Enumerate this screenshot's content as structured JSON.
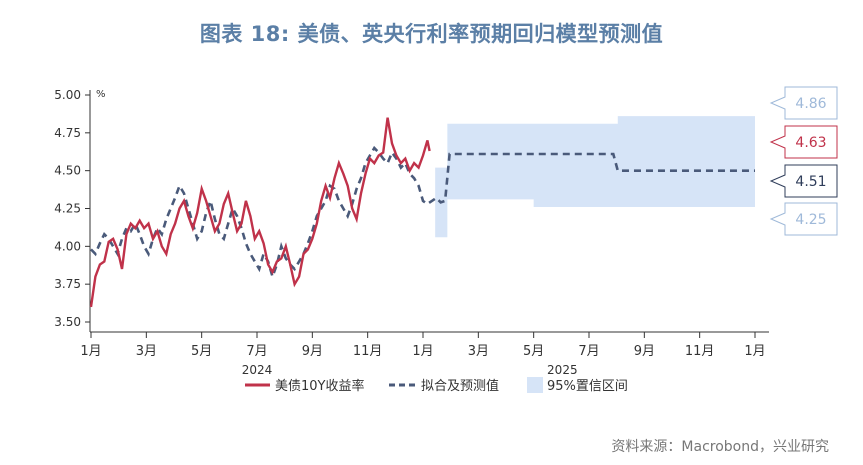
{
  "title": "图表 18: 美债、英央行利率预期回归模型预测值",
  "source": "资料来源：Macrobond，兴业研究",
  "chart_data": {
    "type": "line",
    "unit_label": "%",
    "ylim": [
      3.5,
      5.0
    ],
    "yticks": [
      "5.00",
      "4.75",
      "4.50",
      "4.25",
      "4.00",
      "3.75",
      "3.50"
    ],
    "xticks": [
      "1月",
      "3月",
      "5月",
      "7月",
      "9月",
      "11月",
      "1月",
      "3月",
      "5月",
      "7月",
      "9月",
      "11月",
      "1月"
    ],
    "year_labels": [
      "2024",
      "2025"
    ],
    "legend": {
      "actual": "美债10Y收益率",
      "fit": "拟合及预测值",
      "band": "95%置信区间"
    },
    "colors": {
      "actual": "#c0324a",
      "fit": "#4a5a7a",
      "band": "#d6e4f7"
    },
    "callouts": [
      {
        "value": "4.86",
        "color": "#9fb9d9"
      },
      {
        "value": "4.63",
        "color": "#c0324a"
      },
      {
        "value": "4.51",
        "color": "#2f3d5a"
      },
      {
        "value": "4.25",
        "color": "#9fb9d9"
      }
    ],
    "actual": [
      [
        0,
        3.6
      ],
      [
        2,
        3.8
      ],
      [
        4,
        3.88
      ],
      [
        6,
        3.9
      ],
      [
        8,
        4.03
      ],
      [
        10,
        4.05
      ],
      [
        12,
        3.98
      ],
      [
        14,
        3.85
      ],
      [
        16,
        4.08
      ],
      [
        18,
        4.15
      ],
      [
        20,
        4.12
      ],
      [
        22,
        4.17
      ],
      [
        24,
        4.12
      ],
      [
        26,
        4.15
      ],
      [
        28,
        4.05
      ],
      [
        30,
        4.1
      ],
      [
        32,
        4.0
      ],
      [
        34,
        3.95
      ],
      [
        36,
        4.08
      ],
      [
        38,
        4.15
      ],
      [
        40,
        4.25
      ],
      [
        42,
        4.3
      ],
      [
        44,
        4.2
      ],
      [
        46,
        4.12
      ],
      [
        48,
        4.22
      ],
      [
        50,
        4.38
      ],
      [
        52,
        4.3
      ],
      [
        54,
        4.2
      ],
      [
        56,
        4.1
      ],
      [
        58,
        4.15
      ],
      [
        60,
        4.28
      ],
      [
        62,
        4.35
      ],
      [
        64,
        4.22
      ],
      [
        66,
        4.1
      ],
      [
        68,
        4.15
      ],
      [
        70,
        4.3
      ],
      [
        72,
        4.2
      ],
      [
        74,
        4.05
      ],
      [
        76,
        4.1
      ],
      [
        78,
        4.02
      ],
      [
        80,
        3.88
      ],
      [
        82,
        3.83
      ],
      [
        84,
        3.9
      ],
      [
        86,
        3.92
      ],
      [
        88,
        4.0
      ],
      [
        90,
        3.88
      ],
      [
        92,
        3.75
      ],
      [
        94,
        3.8
      ],
      [
        96,
        3.95
      ],
      [
        98,
        3.98
      ],
      [
        100,
        4.05
      ],
      [
        102,
        4.15
      ],
      [
        104,
        4.3
      ],
      [
        106,
        4.4
      ],
      [
        108,
        4.32
      ],
      [
        110,
        4.45
      ],
      [
        112,
        4.55
      ],
      [
        114,
        4.48
      ],
      [
        116,
        4.4
      ],
      [
        118,
        4.25
      ],
      [
        120,
        4.18
      ],
      [
        122,
        4.35
      ],
      [
        124,
        4.48
      ],
      [
        126,
        4.58
      ],
      [
        128,
        4.55
      ],
      [
        130,
        4.6
      ],
      [
        132,
        4.62
      ],
      [
        134,
        4.85
      ],
      [
        136,
        4.68
      ],
      [
        138,
        4.6
      ],
      [
        140,
        4.55
      ],
      [
        142,
        4.58
      ],
      [
        144,
        4.5
      ],
      [
        146,
        4.55
      ],
      [
        148,
        4.52
      ],
      [
        150,
        4.6
      ],
      [
        152,
        4.7
      ],
      [
        153,
        4.63
      ]
    ],
    "fit": [
      [
        0,
        3.98
      ],
      [
        2,
        3.95
      ],
      [
        4,
        4.02
      ],
      [
        6,
        4.08
      ],
      [
        8,
        4.05
      ],
      [
        10,
        4.0
      ],
      [
        12,
        3.95
      ],
      [
        14,
        4.05
      ],
      [
        16,
        4.12
      ],
      [
        18,
        4.1
      ],
      [
        20,
        4.15
      ],
      [
        22,
        4.08
      ],
      [
        24,
        4.0
      ],
      [
        26,
        3.95
      ],
      [
        28,
        4.05
      ],
      [
        30,
        4.12
      ],
      [
        32,
        4.08
      ],
      [
        34,
        4.18
      ],
      [
        36,
        4.25
      ],
      [
        38,
        4.32
      ],
      [
        40,
        4.4
      ],
      [
        42,
        4.35
      ],
      [
        44,
        4.25
      ],
      [
        46,
        4.15
      ],
      [
        48,
        4.05
      ],
      [
        50,
        4.1
      ],
      [
        52,
        4.22
      ],
      [
        54,
        4.3
      ],
      [
        56,
        4.18
      ],
      [
        58,
        4.08
      ],
      [
        60,
        4.05
      ],
      [
        62,
        4.15
      ],
      [
        64,
        4.25
      ],
      [
        66,
        4.2
      ],
      [
        68,
        4.12
      ],
      [
        70,
        4.02
      ],
      [
        72,
        3.95
      ],
      [
        74,
        3.9
      ],
      [
        76,
        3.85
      ],
      [
        78,
        3.95
      ],
      [
        80,
        3.9
      ],
      [
        82,
        3.8
      ],
      [
        84,
        3.88
      ],
      [
        86,
        4.0
      ],
      [
        88,
        3.92
      ],
      [
        90,
        3.88
      ],
      [
        92,
        3.85
      ],
      [
        94,
        3.9
      ],
      [
        96,
        3.95
      ],
      [
        98,
        4.02
      ],
      [
        100,
        4.1
      ],
      [
        102,
        4.2
      ],
      [
        104,
        4.25
      ],
      [
        106,
        4.3
      ],
      [
        108,
        4.4
      ],
      [
        110,
        4.38
      ],
      [
        112,
        4.3
      ],
      [
        114,
        4.25
      ],
      [
        116,
        4.2
      ],
      [
        118,
        4.28
      ],
      [
        120,
        4.38
      ],
      [
        122,
        4.45
      ],
      [
        124,
        4.55
      ],
      [
        126,
        4.6
      ],
      [
        128,
        4.65
      ],
      [
        130,
        4.62
      ],
      [
        132,
        4.58
      ],
      [
        134,
        4.55
      ],
      [
        136,
        4.62
      ],
      [
        138,
        4.58
      ],
      [
        140,
        4.52
      ],
      [
        142,
        4.55
      ],
      [
        144,
        4.48
      ],
      [
        146,
        4.45
      ],
      [
        148,
        4.4
      ],
      [
        150,
        4.3
      ],
      [
        152,
        4.28
      ],
      [
        154,
        4.3
      ],
      [
        156,
        4.32
      ],
      [
        158,
        4.29
      ],
      [
        160,
        4.3
      ],
      [
        162,
        4.61
      ],
      [
        163.5,
        4.61
      ],
      [
        236,
        4.61
      ],
      [
        238,
        4.5
      ],
      [
        300,
        4.5
      ]
    ],
    "band": [
      [
        155.5,
        4.06,
        4.52
      ],
      [
        161,
        4.06,
        4.52
      ],
      [
        161,
        4.31,
        4.81
      ],
      [
        200,
        4.31,
        4.81
      ],
      [
        200,
        4.26,
        4.81
      ],
      [
        238,
        4.26,
        4.81
      ],
      [
        238,
        4.26,
        4.86
      ],
      [
        300,
        4.26,
        4.86
      ]
    ]
  }
}
